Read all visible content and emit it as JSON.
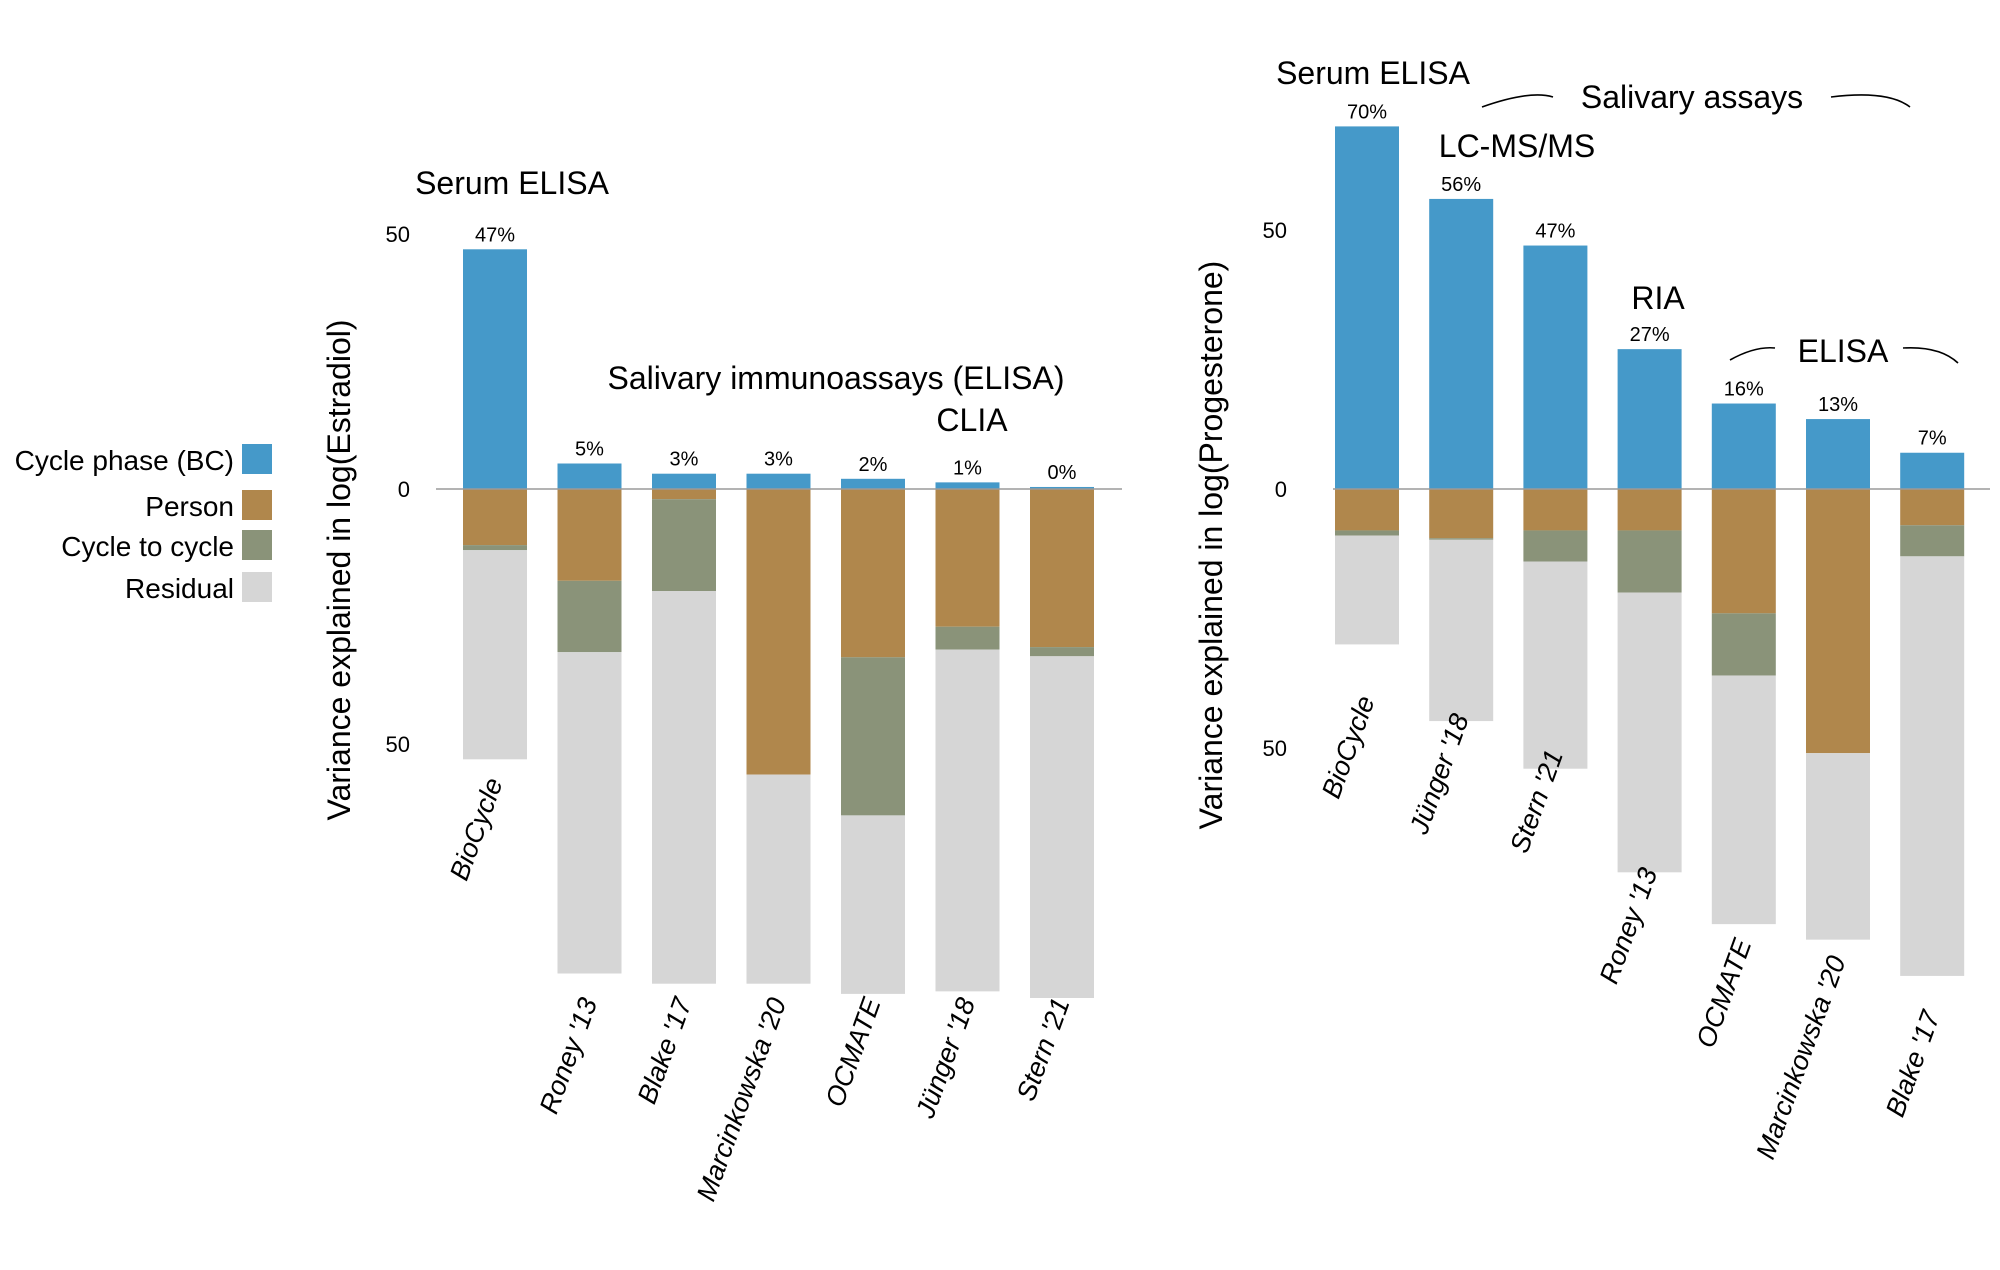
{
  "colors": {
    "cycle_phase": "#4599c9",
    "person": "#b0874c",
    "cycle_to_cycle": "#8a9379",
    "residual": "#d6d6d6"
  },
  "legend": [
    {
      "key": "cycle_phase",
      "label": "Cycle phase (BC)"
    },
    {
      "key": "person",
      "label": "Person"
    },
    {
      "key": "cycle_to_cycle",
      "label": "Cycle to cycle"
    },
    {
      "key": "residual",
      "label": "Residual"
    }
  ],
  "chart_data": [
    {
      "type": "bar",
      "stacking": "diverging",
      "ylabel": "Variance explained in log(Estradiol)",
      "yticks": [
        50,
        0,
        50
      ],
      "ylim": [
        -100,
        50
      ],
      "categories": [
        "BioCycle",
        "Roney '13",
        "Blake '17",
        "Marcinkowska '20",
        "OCMATE",
        "Jünger '18",
        "Stern '21"
      ],
      "pct_labels": [
        "47%",
        "5%",
        "3%",
        "3%",
        "2%",
        "1%",
        "0%"
      ],
      "series": [
        {
          "name": "Cycle phase (BC)",
          "key": "cycle_phase",
          "values": [
            47,
            5,
            3,
            3,
            2,
            1.3,
            0.4
          ]
        },
        {
          "name": "Person",
          "key": "person",
          "values": [
            11,
            18,
            2,
            56,
            33,
            27,
            31
          ]
        },
        {
          "name": "Cycle to cycle",
          "key": "cycle_to_cycle",
          "values": [
            1,
            14,
            18,
            0,
            31,
            4.5,
            1.8
          ]
        },
        {
          "name": "Residual",
          "key": "residual",
          "values": [
            41,
            63,
            77,
            41,
            35,
            67,
            67
          ]
        }
      ],
      "group_labels": [
        {
          "text": "Serum ELISA",
          "from": 0,
          "to": 0
        },
        {
          "text": "Salivary immunoassays (ELISA)",
          "from": 1,
          "to": 6
        },
        {
          "text": "CLIA",
          "from": 5,
          "to": 6
        }
      ]
    },
    {
      "type": "bar",
      "stacking": "diverging",
      "ylabel": "Variance explained in log(Progesterone)",
      "yticks": [
        50,
        0,
        50
      ],
      "ylim": [
        -100,
        70
      ],
      "categories": [
        "BioCycle",
        "Jünger '18",
        "Stern '21",
        "Roney '13",
        "OCMATE",
        "Marcinkowska '20",
        "Blake '17"
      ],
      "pct_labels": [
        "70%",
        "56%",
        "47%",
        "27%",
        "16%",
        "13%",
        "7%"
      ],
      "series": [
        {
          "name": "Cycle phase (BC)",
          "key": "cycle_phase",
          "values": [
            70,
            56,
            47,
            27,
            16.5,
            13.5,
            7
          ]
        },
        {
          "name": "Person",
          "key": "person",
          "values": [
            8,
            9.5,
            8,
            8,
            24,
            51,
            7
          ]
        },
        {
          "name": "Cycle to cycle",
          "key": "cycle_to_cycle",
          "values": [
            1,
            0.3,
            6,
            12,
            12,
            0,
            6
          ]
        },
        {
          "name": "Residual",
          "key": "residual",
          "values": [
            21,
            35,
            40,
            54,
            48,
            36,
            81
          ]
        }
      ],
      "group_labels": [
        {
          "text": "Serum ELISA",
          "from": 0,
          "to": 0
        },
        {
          "text": "Salivary assays",
          "from": 1,
          "to": 6
        },
        {
          "text": "LC-MS/MS",
          "from": 1,
          "to": 2
        },
        {
          "text": "RIA",
          "from": 3,
          "to": 3
        },
        {
          "text": "ELISA",
          "from": 4,
          "to": 6
        }
      ]
    }
  ]
}
